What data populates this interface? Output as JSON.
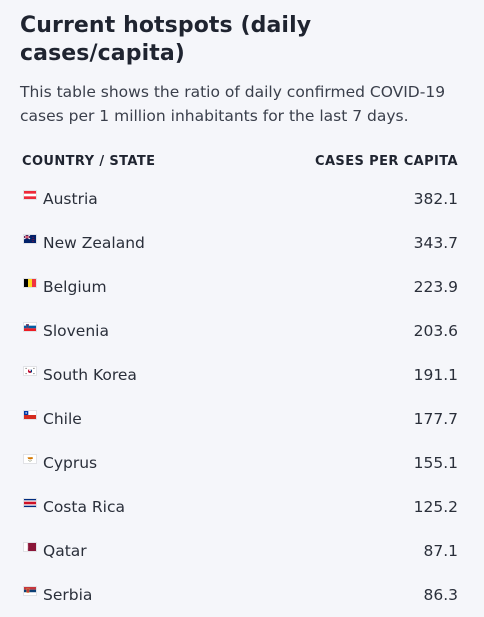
{
  "header": {
    "title": "Current hotspots (daily cases/capita)",
    "description": "This table shows the ratio of daily confirmed COVID-19 cases per 1 million inhabitants for the last 7 days."
  },
  "table": {
    "columns": [
      "COUNTRY / STATE",
      "CASES PER CAPITA"
    ],
    "rows": [
      {
        "country": "Austria",
        "value": "382.1",
        "flag": "austria-flag-icon"
      },
      {
        "country": "New Zealand",
        "value": "343.7",
        "flag": "new-zealand-flag-icon"
      },
      {
        "country": "Belgium",
        "value": "223.9",
        "flag": "belgium-flag-icon"
      },
      {
        "country": "Slovenia",
        "value": "203.6",
        "flag": "slovenia-flag-icon"
      },
      {
        "country": "South Korea",
        "value": "191.1",
        "flag": "south-korea-flag-icon"
      },
      {
        "country": "Chile",
        "value": "177.7",
        "flag": "chile-flag-icon"
      },
      {
        "country": "Cyprus",
        "value": "155.1",
        "flag": "cyprus-flag-icon"
      },
      {
        "country": "Costa Rica",
        "value": "125.2",
        "flag": "costa-rica-flag-icon"
      },
      {
        "country": "Qatar",
        "value": "87.1",
        "flag": "qatar-flag-icon"
      },
      {
        "country": "Serbia",
        "value": "86.3",
        "flag": "serbia-flag-icon"
      }
    ]
  },
  "colors": {
    "background": "#f5f6fa",
    "text": "#1f2430"
  }
}
